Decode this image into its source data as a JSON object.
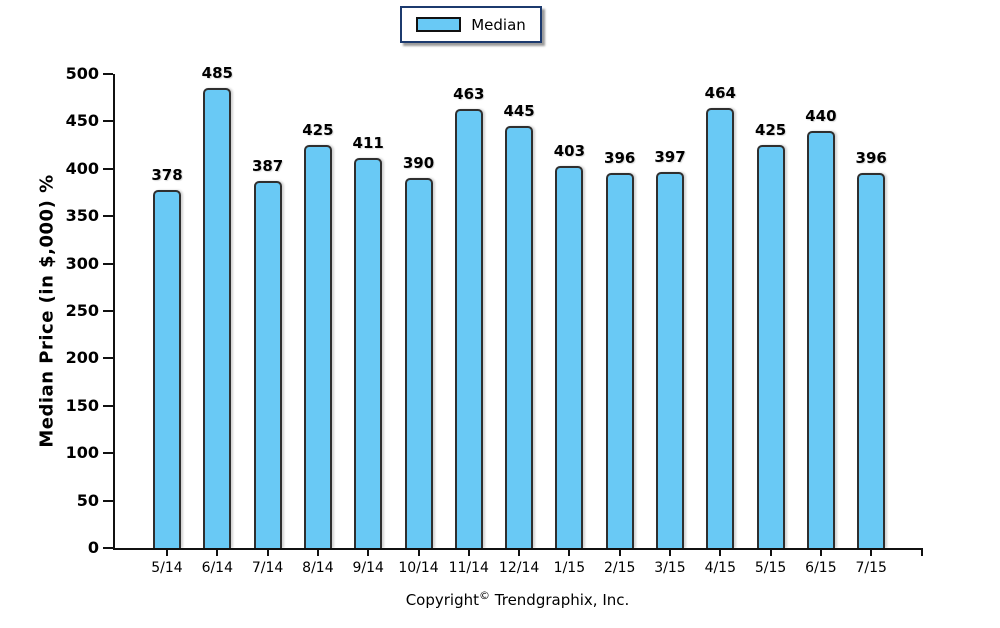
{
  "legend": {
    "label": "Median",
    "swatch_color": "#69C9F5"
  },
  "chart": {
    "y_axis_title": "Median Price (in $,000) %"
  },
  "footer": {
    "prefix": "Copyright",
    "symbol": "©",
    "suffix": "Trendgraphix, Inc."
  },
  "chart_data": {
    "type": "bar",
    "title": "",
    "categories": [
      "5/14",
      "6/14",
      "7/14",
      "8/14",
      "9/14",
      "10/14",
      "11/14",
      "12/14",
      "1/15",
      "2/15",
      "3/15",
      "4/15",
      "5/15",
      "6/15",
      "7/15"
    ],
    "series": [
      {
        "name": "Median",
        "values": [
          378,
          485,
          387,
          425,
          411,
          390,
          463,
          445,
          403,
          396,
          397,
          464,
          425,
          440,
          396
        ]
      }
    ],
    "xlabel": "",
    "ylabel": "Median Price (in $,000) %",
    "ylim": [
      0,
      500
    ],
    "ytick_step": 50,
    "grid": false,
    "legend_position": "top-center",
    "value_labels": true,
    "bar_color": "#69C9F5",
    "bar_border_color": "#2f2f2f",
    "axis_color": "#111111",
    "text_color": "#000000"
  }
}
